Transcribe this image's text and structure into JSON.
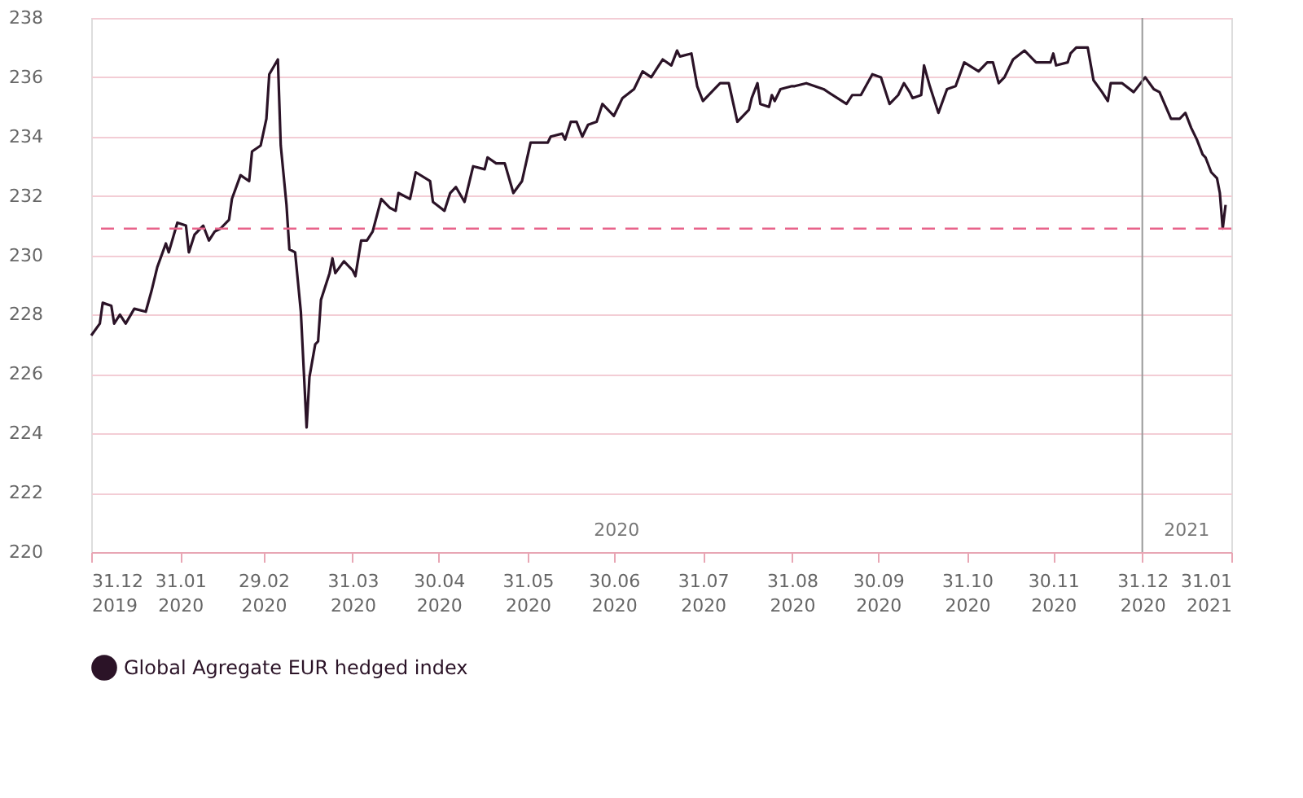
{
  "chart_data": {
    "type": "line",
    "legend": "bottom",
    "grid": "y",
    "line_style": "solid",
    "marker": "none",
    "xlim": [
      "2019-12-31",
      "2021-01-31"
    ],
    "xticks": [
      {
        "value": "2019-12-31",
        "label": "31.12 2019"
      },
      {
        "value": "2020-01-31",
        "label": "31.01 2020"
      },
      {
        "value": "2020-02-29",
        "label": "29.02 2020"
      },
      {
        "value": "2020-03-31",
        "label": "31.03 2020"
      },
      {
        "value": "2020-04-30",
        "label": "30.04 2020"
      },
      {
        "value": "2020-05-31",
        "label": "31.05 2020"
      },
      {
        "value": "2020-06-30",
        "label": "30.06 2020"
      },
      {
        "value": "2020-07-31",
        "label": "31.07 2020"
      },
      {
        "value": "2020-08-31",
        "label": "31.08 2020"
      },
      {
        "value": "2020-09-30",
        "label": "30.09 2020"
      },
      {
        "value": "2020-10-31",
        "label": "31.10 2020"
      },
      {
        "value": "2020-11-30",
        "label": "30.11 2020"
      },
      {
        "value": "2020-12-31",
        "label": "31.12 2020"
      },
      {
        "value": "2021-01-31",
        "label": "31.01 2021"
      }
    ],
    "ylim": [
      220,
      238
    ],
    "yticks": [
      220,
      222,
      224,
      226,
      228,
      230,
      232,
      234,
      236,
      238
    ],
    "ref_lines": [
      {
        "axis": "y",
        "value": 230.9,
        "color": "#e8638a",
        "line_style": "dashed"
      },
      {
        "axis": "x",
        "value": "2020-12-31",
        "color": "#9a9a9a",
        "line_style": "solid"
      }
    ],
    "annotations": [
      "2020",
      "2021"
    ],
    "series": [
      {
        "name": "Global Agregate EUR hedged index",
        "color": "#2b1327",
        "x": [
          "2019-12-31",
          "2020-01-03",
          "2020-01-04",
          "2020-01-07",
          "2020-01-08",
          "2020-01-10",
          "2020-01-12",
          "2020-01-15",
          "2020-01-19",
          "2020-01-21",
          "2020-01-23",
          "2020-01-26",
          "2020-01-27",
          "2020-01-30",
          "2020-02-02",
          "2020-02-03",
          "2020-02-05",
          "2020-02-08",
          "2020-02-10",
          "2020-02-12",
          "2020-02-14",
          "2020-02-17",
          "2020-02-18",
          "2020-02-21",
          "2020-02-24",
          "2020-02-25",
          "2020-02-28",
          "2020-03-01",
          "2020-03-02",
          "2020-03-05",
          "2020-03-06",
          "2020-03-08",
          "2020-03-09",
          "2020-03-11",
          "2020-03-13",
          "2020-03-15",
          "2020-03-16",
          "2020-03-18",
          "2020-03-19",
          "2020-03-20",
          "2020-03-23",
          "2020-03-24",
          "2020-03-25",
          "2020-03-28",
          "2020-03-31",
          "2020-04-01",
          "2020-04-03",
          "2020-04-05",
          "2020-04-07",
          "2020-04-10",
          "2020-04-13",
          "2020-04-15",
          "2020-04-16",
          "2020-04-20",
          "2020-04-22",
          "2020-04-27",
          "2020-04-28",
          "2020-05-02",
          "2020-05-04",
          "2020-05-06",
          "2020-05-09",
          "2020-05-12",
          "2020-05-16",
          "2020-05-17",
          "2020-05-20",
          "2020-05-23",
          "2020-05-26",
          "2020-05-29",
          "2020-06-01",
          "2020-06-07",
          "2020-06-08",
          "2020-06-12",
          "2020-06-13",
          "2020-06-15",
          "2020-06-17",
          "2020-06-19",
          "2020-06-21",
          "2020-06-24",
          "2020-06-26",
          "2020-06-30",
          "2020-07-03",
          "2020-07-07",
          "2020-07-10",
          "2020-07-13",
          "2020-07-15",
          "2020-07-17",
          "2020-07-20",
          "2020-07-22",
          "2020-07-23",
          "2020-07-27",
          "2020-07-29",
          "2020-07-31",
          "2020-08-04",
          "2020-08-06",
          "2020-08-09",
          "2020-08-12",
          "2020-08-16",
          "2020-08-17",
          "2020-08-19",
          "2020-08-20",
          "2020-08-23",
          "2020-08-24",
          "2020-08-25",
          "2020-08-27",
          "2020-08-31",
          "2020-09-01",
          "2020-09-05",
          "2020-09-11",
          "2020-09-19",
          "2020-09-21",
          "2020-09-24",
          "2020-09-28",
          "2020-10-01",
          "2020-10-04",
          "2020-10-07",
          "2020-10-09",
          "2020-10-11",
          "2020-10-12",
          "2020-10-15",
          "2020-10-16",
          "2020-10-18",
          "2020-10-21",
          "2020-10-24",
          "2020-10-27",
          "2020-10-30",
          "2020-11-04",
          "2020-11-07",
          "2020-11-09",
          "2020-11-11",
          "2020-11-13",
          "2020-11-16",
          "2020-11-20",
          "2020-11-24",
          "2020-11-29",
          "2020-11-30",
          "2020-12-01",
          "2020-12-05",
          "2020-12-06",
          "2020-12-08",
          "2020-12-12",
          "2020-12-14",
          "2020-12-17",
          "2020-12-19",
          "2020-12-20",
          "2020-12-24",
          "2020-12-28",
          "2021-01-01",
          "2021-01-04",
          "2021-01-06",
          "2021-01-10",
          "2021-01-13",
          "2021-01-15",
          "2021-01-17",
          "2021-01-19",
          "2021-01-21",
          "2021-01-22",
          "2021-01-24",
          "2021-01-26",
          "2021-01-27",
          "2021-01-28",
          "2021-01-29"
        ],
        "values": [
          227.3,
          227.7,
          228.4,
          228.3,
          227.7,
          228.0,
          227.7,
          228.2,
          228.1,
          228.8,
          229.6,
          230.4,
          230.1,
          231.1,
          231.0,
          230.1,
          230.7,
          231.0,
          230.5,
          230.8,
          230.9,
          231.2,
          231.9,
          232.7,
          232.5,
          233.5,
          233.7,
          234.6,
          236.1,
          236.6,
          233.7,
          231.7,
          230.2,
          230.1,
          228.1,
          224.2,
          225.9,
          227.0,
          227.1,
          228.5,
          229.4,
          229.9,
          229.4,
          229.8,
          229.5,
          229.3,
          230.5,
          230.5,
          230.8,
          231.9,
          231.6,
          231.5,
          232.1,
          231.9,
          232.8,
          232.5,
          231.8,
          231.5,
          232.1,
          232.3,
          231.8,
          233.0,
          232.9,
          233.3,
          233.1,
          233.1,
          232.1,
          232.5,
          233.8,
          233.8,
          234.0,
          234.1,
          233.9,
          234.5,
          234.5,
          234.0,
          234.4,
          234.5,
          235.1,
          234.7,
          235.3,
          235.6,
          236.2,
          236.0,
          236.3,
          236.6,
          236.4,
          236.9,
          236.7,
          236.8,
          235.7,
          235.2,
          235.6,
          235.8,
          235.8,
          234.5,
          234.9,
          235.3,
          235.8,
          235.1,
          235.0,
          235.4,
          235.2,
          235.6,
          235.7,
          235.7,
          235.8,
          235.6,
          235.1,
          235.4,
          235.4,
          236.1,
          236.0,
          235.1,
          235.4,
          235.8,
          235.5,
          235.3,
          235.4,
          236.4,
          235.7,
          234.8,
          235.6,
          235.7,
          236.5,
          236.2,
          236.5,
          236.5,
          235.8,
          236.0,
          236.6,
          236.9,
          236.5,
          236.5,
          236.8,
          236.4,
          236.5,
          236.8,
          237.0,
          237.0,
          235.9,
          235.5,
          235.2,
          235.8,
          235.8,
          235.5,
          236.0,
          235.6,
          235.5,
          234.6,
          234.6,
          234.8,
          234.3,
          233.9,
          233.4,
          233.3,
          232.8,
          232.6,
          232.1,
          230.9,
          231.7
        ]
      }
    ]
  }
}
